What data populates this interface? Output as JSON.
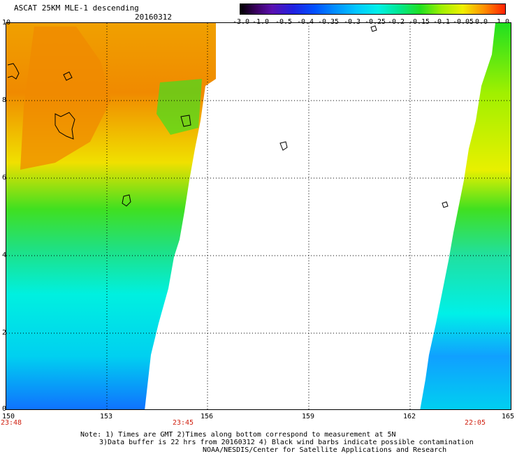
{
  "header": {
    "title": "ASCAT 25KM MLE-1 descending",
    "date": "20160312"
  },
  "colorbar": {
    "labels": [
      "-3.0",
      "-1.0",
      "-0.5",
      "-0.4",
      "-0.35",
      "-0.3",
      "-0.25",
      "-0.2",
      "-0.15",
      "-0.1",
      "-0.05",
      "0.0",
      "1.0"
    ]
  },
  "axes": {
    "x_ticks": [
      "150",
      "153",
      "156",
      "159",
      "162",
      "165"
    ],
    "y_ticks": [
      "10",
      "8",
      "6",
      "4",
      "2",
      "0"
    ]
  },
  "pass_times": [
    "23:48",
    "23:45",
    "22:05"
  ],
  "notes": {
    "line1": "Note: 1) Times are GMT 2)Times along bottom correspond to measurement at 5N",
    "line2": "3)Data buffer is 22 hrs from 20160312 4) Black wind barbs indicate possible contamination",
    "line3": "NOAA/NESDIS/Center for Satellite Applications and Research"
  },
  "colors": {
    "time_label": "#d02010",
    "background": "#ffffff",
    "frame": "#000000"
  }
}
